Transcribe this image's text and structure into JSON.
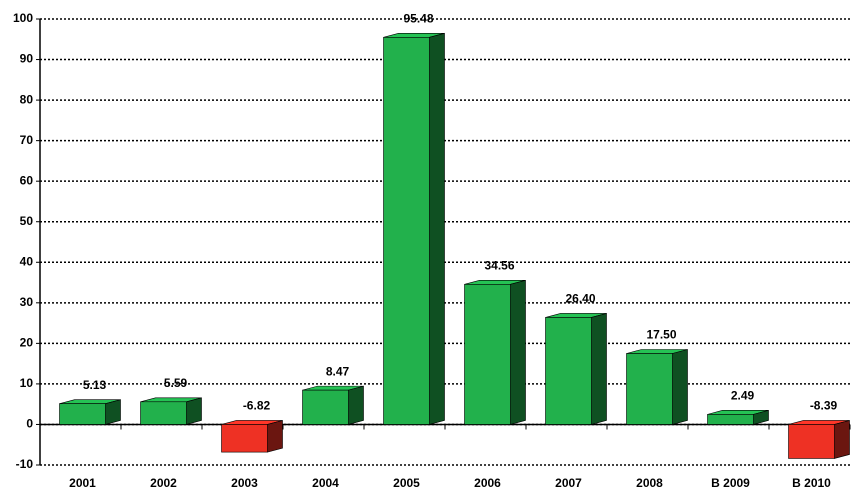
{
  "chart_data": {
    "type": "bar3d",
    "categories": [
      "2001",
      "2002",
      "2003",
      "2004",
      "2005",
      "2006",
      "2007",
      "2008",
      "B 2009",
      "B 2010"
    ],
    "values": [
      5.13,
      5.59,
      -6.82,
      8.47,
      95.48,
      34.56,
      26.4,
      17.5,
      2.49,
      -8.39
    ],
    "value_labels": [
      "5.13",
      "5.59",
      "-6.82",
      "8.47",
      "95.48",
      "34.56",
      "26.40",
      "17.50",
      "2.49",
      "-8.39"
    ],
    "positive_color": "#22b14c",
    "negative_color": "#ee3124",
    "ylim": [
      -10,
      100
    ],
    "yticks": [
      -10,
      0,
      10,
      20,
      30,
      40,
      50,
      60,
      70,
      80,
      90,
      100
    ],
    "grid": true
  }
}
